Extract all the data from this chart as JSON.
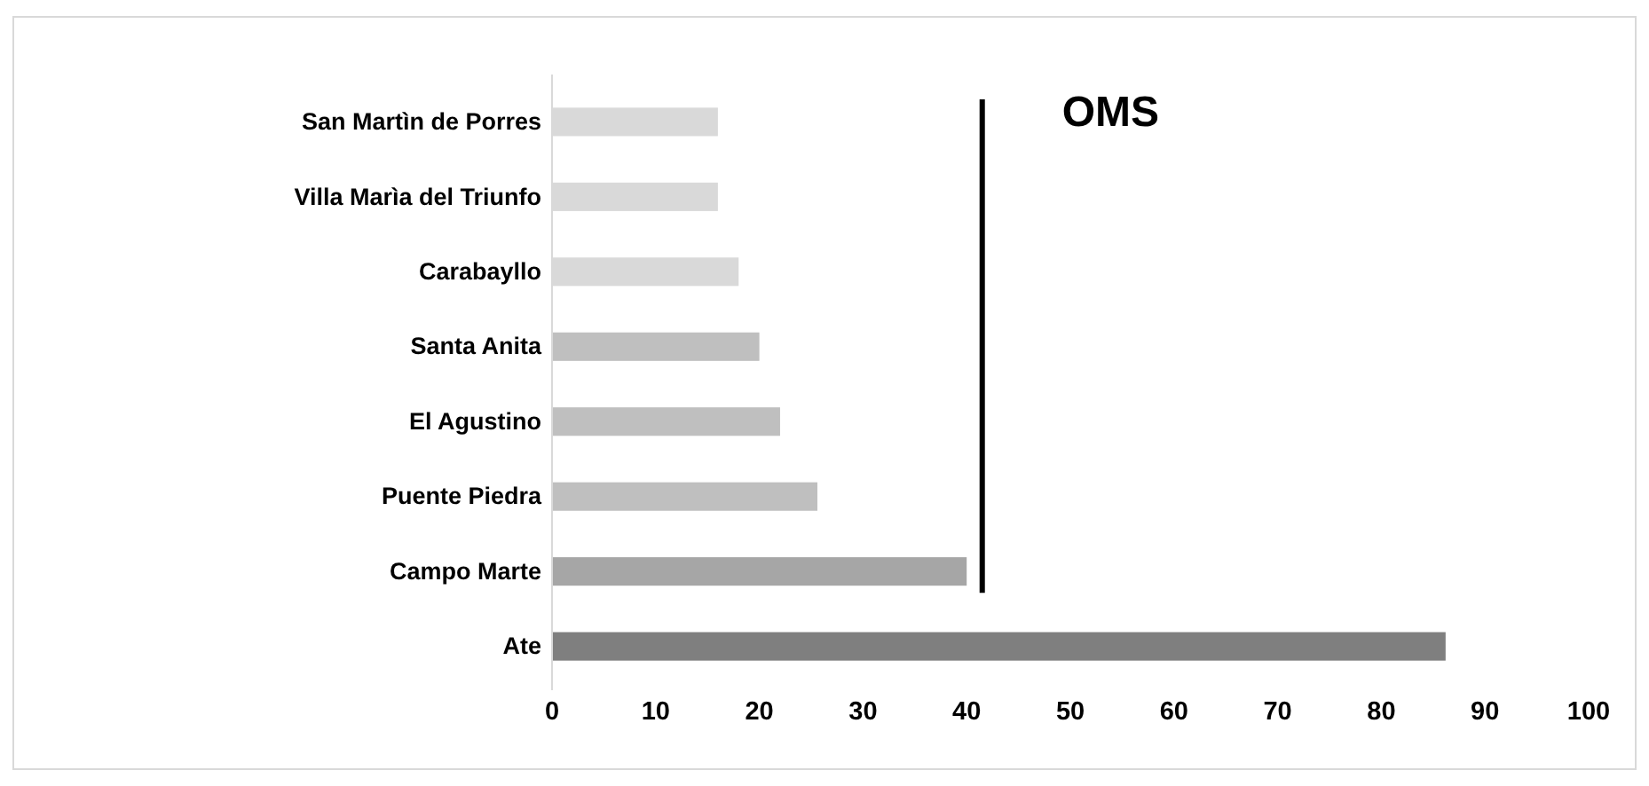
{
  "chart_data": {
    "type": "bar",
    "orientation": "horizontal",
    "categories": [
      "San Martìn de Porres",
      "Villa Marìa del Triunfo",
      "Carabayllo",
      "Santa Anita",
      "El Agustino",
      "Puente Piedra",
      "Campo Marte",
      "Ate"
    ],
    "values": [
      16,
      16,
      18,
      20,
      22,
      25.6,
      40,
      86.2
    ],
    "colors": [
      "#d9d9d9",
      "#d9d9d9",
      "#d9d9d9",
      "#bfbfbf",
      "#bfbfbf",
      "#bfbfbf",
      "#a6a6a6",
      "#7f7f7f"
    ],
    "xlim": [
      0,
      100
    ],
    "xticks": [
      0,
      10,
      20,
      30,
      40,
      50,
      60,
      70,
      80,
      90,
      100
    ],
    "ref_lines": [
      {
        "axis": "x",
        "value": 41.5,
        "label": "OMS",
        "color": "#000000"
      }
    ],
    "grid": false
  }
}
